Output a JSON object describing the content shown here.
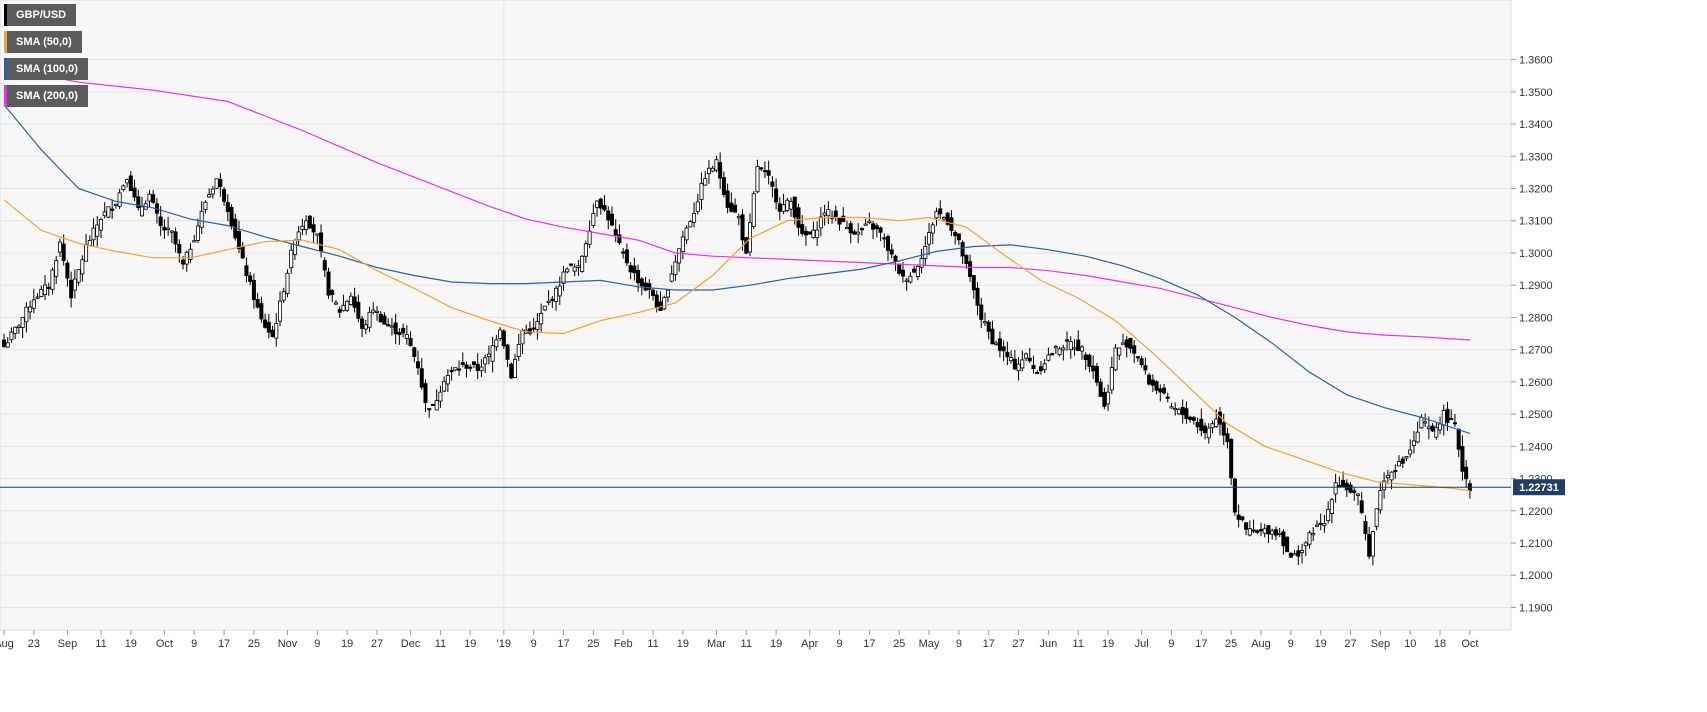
{
  "colors": {
    "plot_bg": "#f7f7f7",
    "grid": "#e4e4e4",
    "candle": "#000000",
    "sma50": "#f5a033",
    "sma100": "#2f5fa8",
    "sma200": "#e830e8",
    "price_line": "#1f3f66",
    "legend_bg": "#5b5b5b"
  },
  "legend": [
    {
      "label": "GBP/USD",
      "color": "#000000"
    },
    {
      "label": "SMA (50,0)",
      "color": "#f5a033"
    },
    {
      "label": "SMA (100,0)",
      "color": "#2f5fa8"
    },
    {
      "label": "SMA (200,0)",
      "color": "#e830e8"
    }
  ],
  "chart_data": {
    "type": "candlestick",
    "symbol": "GBP/USD",
    "timeframe": "daily",
    "y_ticks": [
      "1.3600",
      "1.3500",
      "1.3400",
      "1.3300",
      "1.3200",
      "1.3100",
      "1.3000",
      "1.2900",
      "1.2800",
      "1.2700",
      "1.2600",
      "1.2500",
      "1.2400",
      "1.2300",
      "1.2200",
      "1.2100",
      "1.2000",
      "1.1900"
    ],
    "ylim": [
      1.183,
      1.3785
    ],
    "x_ticks": [
      "Aug",
      "23",
      "Sep",
      "11",
      "19",
      "Oct",
      "9",
      "17",
      "25",
      "Nov",
      "9",
      "19",
      "27",
      "Dec",
      "11",
      "19",
      "'19",
      "9",
      "17",
      "25",
      "Feb",
      "11",
      "19",
      "Mar",
      "11",
      "19",
      "Apr",
      "9",
      "17",
      "25",
      "May",
      "9",
      "17",
      "27",
      "Jun",
      "11",
      "19",
      "Jul",
      "9",
      "17",
      "25",
      "Aug",
      "9",
      "19",
      "27",
      "Sep",
      "10",
      "18",
      "Oct"
    ],
    "x_tick_index": [
      0,
      8,
      17,
      26,
      34,
      43,
      51,
      59,
      67,
      76,
      84,
      92,
      100,
      109,
      117,
      125,
      134,
      142,
      150,
      158,
      166,
      174,
      182,
      191,
      199,
      207,
      216,
      224,
      232,
      240,
      248,
      256,
      264,
      272,
      280,
      288,
      296,
      305,
      313,
      321,
      329,
      337,
      345,
      353,
      361,
      369,
      377,
      385,
      393
    ],
    "current_price": "1.22731",
    "anchor_closes": [
      [
        0,
        1.271
      ],
      [
        4,
        1.278
      ],
      [
        8,
        1.286
      ],
      [
        12,
        1.29
      ],
      [
        15,
        1.303
      ],
      [
        18,
        1.287
      ],
      [
        22,
        1.302
      ],
      [
        26,
        1.311
      ],
      [
        30,
        1.316
      ],
      [
        33,
        1.324
      ],
      [
        36,
        1.313
      ],
      [
        39,
        1.318
      ],
      [
        42,
        1.308
      ],
      [
        45,
        1.306
      ],
      [
        48,
        1.296
      ],
      [
        51,
        1.305
      ],
      [
        54,
        1.316
      ],
      [
        57,
        1.323
      ],
      [
        60,
        1.314
      ],
      [
        63,
        1.301
      ],
      [
        66,
        1.29
      ],
      [
        69,
        1.279
      ],
      [
        72,
        1.274
      ],
      [
        75,
        1.289
      ],
      [
        78,
        1.305
      ],
      [
        81,
        1.311
      ],
      [
        84,
        1.305
      ],
      [
        87,
        1.288
      ],
      [
        90,
        1.282
      ],
      [
        93,
        1.287
      ],
      [
        96,
        1.276
      ],
      [
        99,
        1.283
      ],
      [
        102,
        1.278
      ],
      [
        105,
        1.276
      ],
      [
        108,
        1.274
      ],
      [
        111,
        1.265
      ],
      [
        113,
        1.253
      ],
      [
        115,
        1.252
      ],
      [
        118,
        1.261
      ],
      [
        121,
        1.264
      ],
      [
        124,
        1.265
      ],
      [
        127,
        1.264
      ],
      [
        130,
        1.268
      ],
      [
        133,
        1.277
      ],
      [
        136,
        1.262
      ],
      [
        139,
        1.276
      ],
      [
        142,
        1.276
      ],
      [
        145,
        1.283
      ],
      [
        148,
        1.288
      ],
      [
        151,
        1.296
      ],
      [
        154,
        1.295
      ],
      [
        157,
        1.308
      ],
      [
        159,
        1.317
      ],
      [
        162,
        1.311
      ],
      [
        165,
        1.302
      ],
      [
        168,
        1.295
      ],
      [
        171,
        1.29
      ],
      [
        174,
        1.287
      ],
      [
        176,
        1.281
      ],
      [
        179,
        1.294
      ],
      [
        182,
        1.305
      ],
      [
        185,
        1.313
      ],
      [
        188,
        1.324
      ],
      [
        191,
        1.328
      ],
      [
        194,
        1.315
      ],
      [
        197,
        1.311
      ],
      [
        199,
        1.299
      ],
      [
        202,
        1.327
      ],
      [
        205,
        1.323
      ],
      [
        208,
        1.314
      ],
      [
        211,
        1.316
      ],
      [
        214,
        1.305
      ],
      [
        217,
        1.306
      ],
      [
        220,
        1.313
      ],
      [
        223,
        1.311
      ],
      [
        226,
        1.308
      ],
      [
        229,
        1.306
      ],
      [
        232,
        1.309
      ],
      [
        235,
        1.306
      ],
      [
        238,
        1.299
      ],
      [
        241,
        1.292
      ],
      [
        244,
        1.294
      ],
      [
        247,
        1.302
      ],
      [
        250,
        1.313
      ],
      [
        253,
        1.31
      ],
      [
        256,
        1.303
      ],
      [
        259,
        1.292
      ],
      [
        262,
        1.28
      ],
      [
        265,
        1.273
      ],
      [
        268,
        1.269
      ],
      [
        271,
        1.265
      ],
      [
        274,
        1.268
      ],
      [
        277,
        1.263
      ],
      [
        280,
        1.268
      ],
      [
        283,
        1.271
      ],
      [
        286,
        1.272
      ],
      [
        289,
        1.27
      ],
      [
        292,
        1.264
      ],
      [
        295,
        1.252
      ],
      [
        298,
        1.27
      ],
      [
        301,
        1.272
      ],
      [
        304,
        1.268
      ],
      [
        307,
        1.26
      ],
      [
        310,
        1.257
      ],
      [
        313,
        1.252
      ],
      [
        316,
        1.25
      ],
      [
        319,
        1.248
      ],
      [
        322,
        1.244
      ],
      [
        325,
        1.249
      ],
      [
        328,
        1.242
      ],
      [
        330,
        1.22
      ],
      [
        333,
        1.214
      ],
      [
        336,
        1.213
      ],
      [
        339,
        1.214
      ],
      [
        342,
        1.213
      ],
      [
        345,
        1.205
      ],
      [
        348,
        1.208
      ],
      [
        351,
        1.214
      ],
      [
        354,
        1.216
      ],
      [
        357,
        1.229
      ],
      [
        360,
        1.227
      ],
      [
        363,
        1.224
      ],
      [
        366,
        1.207
      ],
      [
        369,
        1.227
      ],
      [
        372,
        1.233
      ],
      [
        375,
        1.235
      ],
      [
        378,
        1.241
      ],
      [
        380,
        1.248
      ],
      [
        383,
        1.244
      ],
      [
        386,
        1.25
      ],
      [
        389,
        1.246
      ],
      [
        391,
        1.233
      ],
      [
        393,
        1.2273
      ]
    ],
    "sma_50_pts": [
      [
        0,
        1.3165
      ],
      [
        10,
        1.307
      ],
      [
        20,
        1.303
      ],
      [
        30,
        1.3005
      ],
      [
        40,
        1.2985
      ],
      [
        50,
        1.2985
      ],
      [
        60,
        1.301
      ],
      [
        70,
        1.3035
      ],
      [
        80,
        1.304
      ],
      [
        90,
        1.301
      ],
      [
        100,
        1.2945
      ],
      [
        110,
        1.289
      ],
      [
        120,
        1.283
      ],
      [
        130,
        1.279
      ],
      [
        140,
        1.2755
      ],
      [
        150,
        1.275
      ],
      [
        160,
        1.279
      ],
      [
        170,
        1.2815
      ],
      [
        180,
        1.2845
      ],
      [
        190,
        1.293
      ],
      [
        200,
        1.3045
      ],
      [
        210,
        1.31
      ],
      [
        220,
        1.311
      ],
      [
        230,
        1.311
      ],
      [
        240,
        1.31
      ],
      [
        248,
        1.311
      ],
      [
        258,
        1.308
      ],
      [
        268,
        1.2995
      ],
      [
        278,
        1.2915
      ],
      [
        288,
        1.286
      ],
      [
        298,
        1.279
      ],
      [
        308,
        1.269
      ],
      [
        318,
        1.258
      ],
      [
        328,
        1.247
      ],
      [
        338,
        1.24
      ],
      [
        348,
        1.236
      ],
      [
        358,
        1.232
      ],
      [
        368,
        1.229
      ],
      [
        378,
        1.228
      ],
      [
        388,
        1.227
      ],
      [
        393,
        1.2262
      ]
    ],
    "sma_100_pts": [
      [
        0,
        1.346
      ],
      [
        10,
        1.332
      ],
      [
        20,
        1.32
      ],
      [
        30,
        1.316
      ],
      [
        40,
        1.314
      ],
      [
        50,
        1.3105
      ],
      [
        60,
        1.3085
      ],
      [
        70,
        1.305
      ],
      [
        80,
        1.302
      ],
      [
        90,
        1.299
      ],
      [
        100,
        1.2955
      ],
      [
        110,
        1.293
      ],
      [
        120,
        1.291
      ],
      [
        130,
        1.2905
      ],
      [
        140,
        1.2905
      ],
      [
        150,
        1.291
      ],
      [
        160,
        1.2915
      ],
      [
        170,
        1.2895
      ],
      [
        180,
        1.2885
      ],
      [
        190,
        1.2885
      ],
      [
        200,
        1.29
      ],
      [
        210,
        1.292
      ],
      [
        220,
        1.2935
      ],
      [
        230,
        1.295
      ],
      [
        240,
        1.2975
      ],
      [
        250,
        1.3005
      ],
      [
        260,
        1.302
      ],
      [
        270,
        1.3025
      ],
      [
        280,
        1.301
      ],
      [
        290,
        1.299
      ],
      [
        300,
        1.296
      ],
      [
        310,
        1.292
      ],
      [
        320,
        1.287
      ],
      [
        330,
        1.28
      ],
      [
        340,
        1.272
      ],
      [
        350,
        1.263
      ],
      [
        360,
        1.256
      ],
      [
        370,
        1.252
      ],
      [
        380,
        1.249
      ],
      [
        393,
        1.244
      ]
    ],
    "sma_200_pts": [
      [
        0,
        1.3575
      ],
      [
        20,
        1.353
      ],
      [
        40,
        1.3505
      ],
      [
        60,
        1.347
      ],
      [
        70,
        1.3425
      ],
      [
        80,
        1.338
      ],
      [
        90,
        1.333
      ],
      [
        100,
        1.328
      ],
      [
        110,
        1.3235
      ],
      [
        120,
        1.319
      ],
      [
        130,
        1.3145
      ],
      [
        140,
        1.3105
      ],
      [
        150,
        1.308
      ],
      [
        160,
        1.306
      ],
      [
        170,
        1.304
      ],
      [
        180,
        1.3
      ],
      [
        190,
        1.299
      ],
      [
        200,
        1.2985
      ],
      [
        210,
        1.298
      ],
      [
        220,
        1.2975
      ],
      [
        230,
        1.297
      ],
      [
        240,
        1.2965
      ],
      [
        250,
        1.296
      ],
      [
        260,
        1.2955
      ],
      [
        270,
        1.2955
      ],
      [
        280,
        1.2945
      ],
      [
        290,
        1.293
      ],
      [
        300,
        1.291
      ],
      [
        310,
        1.289
      ],
      [
        320,
        1.286
      ],
      [
        330,
        1.283
      ],
      [
        340,
        1.28
      ],
      [
        350,
        1.2775
      ],
      [
        360,
        1.2755
      ],
      [
        370,
        1.2745
      ],
      [
        380,
        1.274
      ],
      [
        393,
        1.273
      ]
    ],
    "xlabel": "",
    "ylabel": ""
  }
}
